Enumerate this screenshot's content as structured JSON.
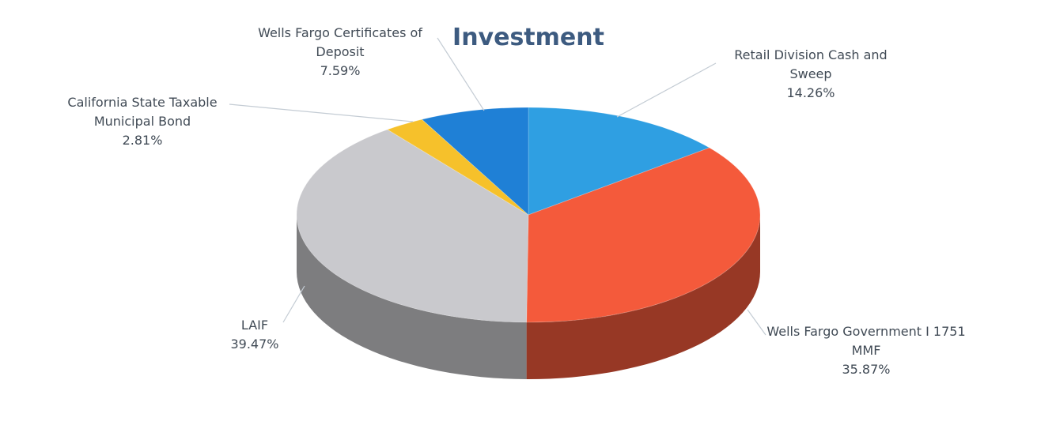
{
  "chart_data": {
    "type": "pie",
    "title": "Investment",
    "categories": [
      "Retail Division Cash and Sweep",
      "Wells Fargo Government I 1751 MMF",
      "LAIF",
      "California State Taxable Municipal Bond",
      "Wells Fargo Certificates of Deposit"
    ],
    "values": [
      14.26,
      35.87,
      39.47,
      2.81,
      7.59
    ],
    "value_labels": [
      "14.26%",
      "35.87%",
      "39.47%",
      "2.81%",
      "7.59%"
    ],
    "colors": [
      "#2f9fe2",
      "#f45a3b",
      "#c9c9cd",
      "#f6c12b",
      "#1f80d6"
    ]
  }
}
